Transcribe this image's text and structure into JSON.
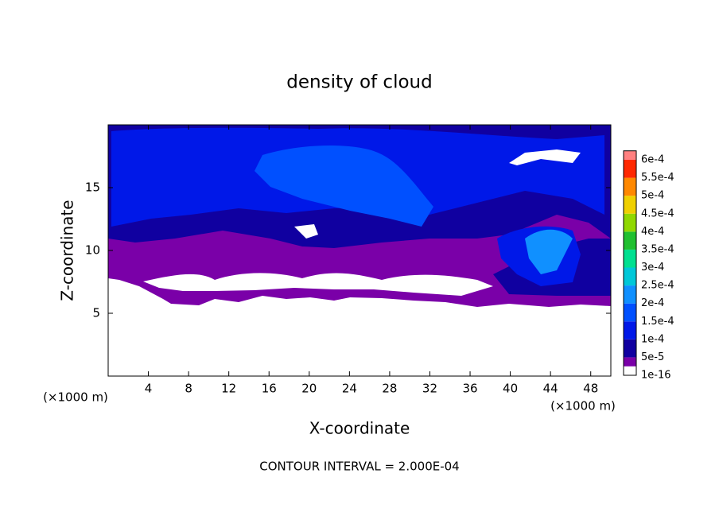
{
  "chart_data": {
    "type": "contour",
    "title": "density of cloud",
    "xlabel": "X-coordinate",
    "ylabel": "Z-coordinate",
    "x_unit": "(×1000 m)",
    "y_unit": "(×1000 m)",
    "footer": "CONTOUR INTERVAL = 2.000E-04",
    "xlim": [
      0,
      50
    ],
    "xticks": [
      4,
      8,
      12,
      16,
      20,
      24,
      28,
      32,
      36,
      40,
      44,
      48
    ],
    "ylim": [
      0,
      20
    ],
    "yticks": [
      5,
      10,
      15
    ],
    "colorbar": {
      "levels": [
        {
          "value": 1e-16,
          "label": "1e-16"
        },
        {
          "value": 5e-05,
          "label": "5e-5"
        },
        {
          "value": 0.0001,
          "label": "1e-4"
        },
        {
          "value": 0.00015,
          "label": "1.5e-4"
        },
        {
          "value": 0.0002,
          "label": "2e-4"
        },
        {
          "value": 0.00025,
          "label": "2.5e-4"
        },
        {
          "value": 0.0003,
          "label": "3e-4"
        },
        {
          "value": 0.00035,
          "label": "3.5e-4"
        },
        {
          "value": 0.0004,
          "label": "4e-4"
        },
        {
          "value": 0.00045,
          "label": "4.5e-4"
        },
        {
          "value": 0.0005,
          "label": "5e-4"
        },
        {
          "value": 0.00055,
          "label": "5.5e-4"
        },
        {
          "value": 0.0006,
          "label": "6e-4"
        }
      ],
      "colors": [
        "#7a00a8",
        "#1000a0",
        "#0018e8",
        "#0050ff",
        "#1090ff",
        "#00c8d8",
        "#00e090",
        "#20c030",
        "#90d800",
        "#f0d000",
        "#ff8800",
        "#ff2800",
        "#ff8080"
      ]
    }
  }
}
